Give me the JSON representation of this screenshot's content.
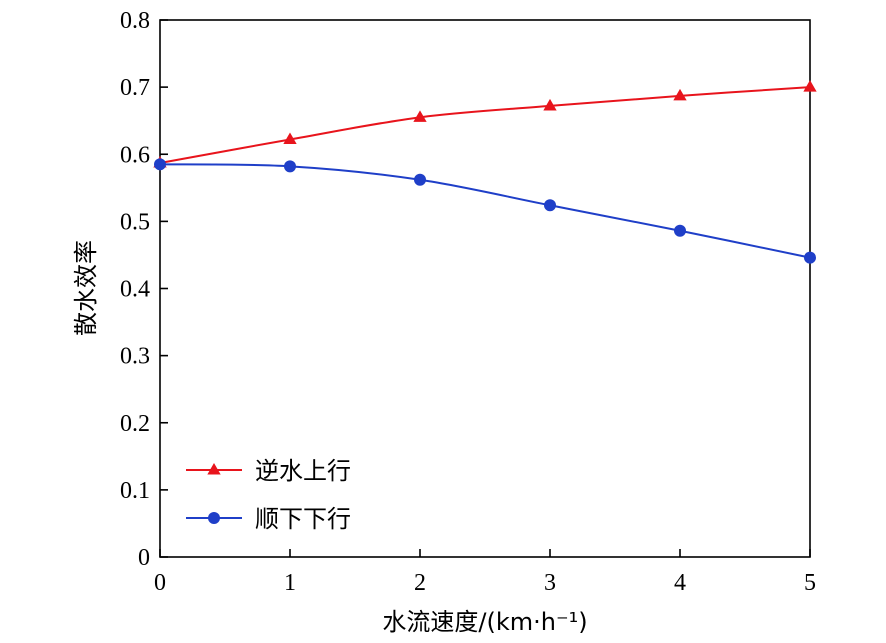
{
  "colors": {
    "series_upstream": "#e8141c",
    "series_downstream": "#1f3fc8",
    "axis": "#000000"
  },
  "chart_data": {
    "type": "line",
    "title": "",
    "xlabel": "水流速度/(km·h⁻¹)",
    "ylabel": "散水效率",
    "xlim": [
      0,
      5
    ],
    "ylim": [
      0,
      0.8
    ],
    "x_ticks": [
      "0",
      "1",
      "2",
      "3",
      "4",
      "5"
    ],
    "y_ticks": [
      "0",
      "0.1",
      "0.2",
      "0.3",
      "0.4",
      "0.5",
      "0.6",
      "0.7",
      "0.8"
    ],
    "grid": false,
    "legend_position": "bottom-left",
    "x": [
      0,
      1,
      2,
      3,
      4,
      5
    ],
    "series": [
      {
        "name": "逆水上行",
        "marker": "triangle",
        "color": "#e8141c",
        "values": [
          0.587,
          0.622,
          0.655,
          0.672,
          0.687,
          0.7
        ]
      },
      {
        "name": "顺下下行",
        "marker": "circle",
        "color": "#1f3fc8",
        "values": [
          0.585,
          0.582,
          0.562,
          0.524,
          0.486,
          0.446
        ]
      }
    ]
  }
}
